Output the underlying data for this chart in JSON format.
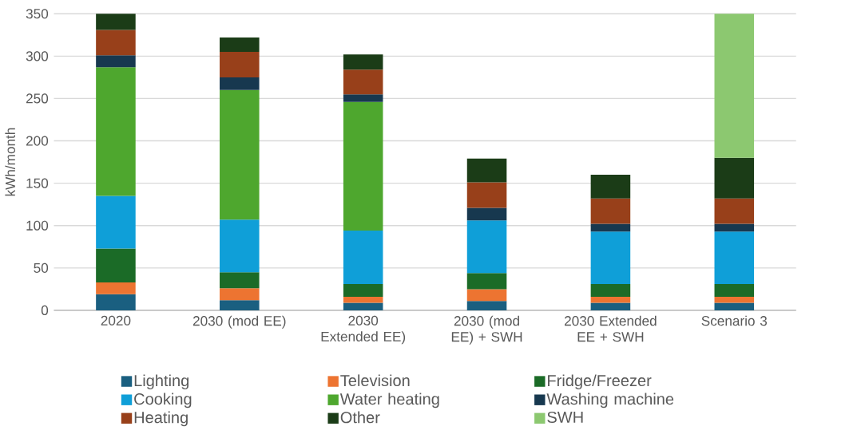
{
  "chart_data": {
    "type": "bar",
    "stacked": true,
    "ylabel": "kWh/month",
    "categories": [
      "2020",
      "2030 (mod EE)",
      "2030 Extended EE)",
      "2030 (mod EE) + SWH",
      "2030 Extended EE + SWH",
      "Scenario 3"
    ],
    "ylim": [
      0,
      350
    ],
    "yticks": [
      0,
      50,
      100,
      150,
      200,
      250,
      300,
      350
    ],
    "grid": "y",
    "legend": "bottom",
    "series": [
      {
        "name": "Lighting",
        "color": "#1a5f80",
        "values": [
          19,
          12,
          9,
          11,
          9,
          9
        ]
      },
      {
        "name": "Television",
        "color": "#ed7431",
        "values": [
          14,
          14,
          7,
          14,
          7,
          7
        ]
      },
      {
        "name": "Fridge/Freezer",
        "color": "#1b6b27",
        "values": [
          40,
          19,
          15,
          19,
          15,
          15
        ]
      },
      {
        "name": "Cooking",
        "color": "#0f9fd8",
        "values": [
          62,
          62,
          63,
          62,
          62,
          62
        ]
      },
      {
        "name": "Water heating",
        "color": "#4ea72e",
        "values": [
          152,
          153,
          152,
          0,
          0,
          0
        ]
      },
      {
        "name": "Washing machine",
        "color": "#17384f",
        "values": [
          14,
          15,
          9,
          15,
          9,
          9
        ]
      },
      {
        "name": "Heating",
        "color": "#98401a",
        "values": [
          30,
          30,
          29,
          30,
          30,
          30
        ]
      },
      {
        "name": "Other",
        "color": "#1b3c17",
        "values": [
          19,
          17,
          18,
          28,
          28,
          48
        ]
      },
      {
        "name": "SWH",
        "color": "#8cc870",
        "values": [
          null,
          null,
          null,
          null,
          null,
          170
        ]
      }
    ]
  }
}
